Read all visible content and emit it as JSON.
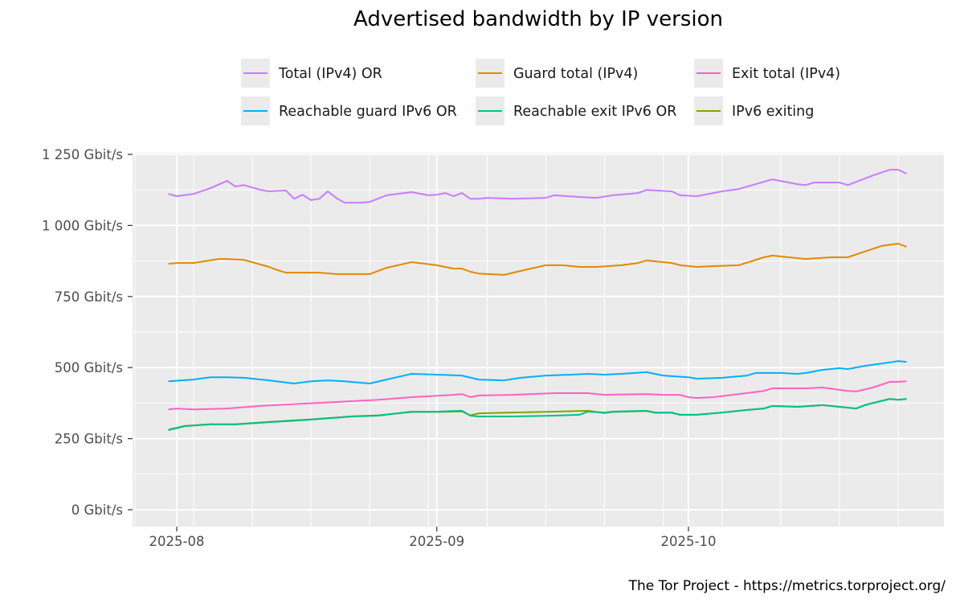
{
  "chart_data": {
    "type": "line",
    "title": "Advertised bandwidth by IP version",
    "xlabel": "",
    "ylabel": "",
    "caption": "The Tor Project - https://metrics.torproject.org/",
    "ylim": [
      0,
      1250
    ],
    "y_unit": "Gbit/s",
    "y_ticks": [
      "0 Gbit/s",
      "250 Gbit/s",
      "500 Gbit/s",
      "750 Gbit/s",
      "1 000 Gbit/s",
      "1 250 Gbit/s"
    ],
    "y_tick_values": [
      0,
      250,
      500,
      750,
      1000,
      1250
    ],
    "x_ticks": [
      "2025-08",
      "2025-09",
      "2025-10"
    ],
    "x_tick_dates": [
      "2025-08-01",
      "2025-09-01",
      "2025-10-01"
    ],
    "xlim": [
      "2025-07-26",
      "2025-11-02"
    ],
    "grid": true,
    "legend_position": "top",
    "series": [
      {
        "name": "Total (IPv4) OR",
        "color": "#C77CFF",
        "points": [
          [
            "2025-07-31",
            1111
          ],
          [
            "2025-08-01",
            1103
          ],
          [
            "2025-08-03",
            1111
          ],
          [
            "2025-08-05",
            1131
          ],
          [
            "2025-08-07",
            1157
          ],
          [
            "2025-08-08",
            1137
          ],
          [
            "2025-08-09",
            1142
          ],
          [
            "2025-08-11",
            1125
          ],
          [
            "2025-08-12",
            1120
          ],
          [
            "2025-08-14",
            1123
          ],
          [
            "2025-08-15",
            1094
          ],
          [
            "2025-08-16",
            1108
          ],
          [
            "2025-08-17",
            1089
          ],
          [
            "2025-08-18",
            1094
          ],
          [
            "2025-08-19",
            1120
          ],
          [
            "2025-08-20",
            1097
          ],
          [
            "2025-08-21",
            1080
          ],
          [
            "2025-08-23",
            1080
          ],
          [
            "2025-08-24",
            1083
          ],
          [
            "2025-08-26",
            1106
          ],
          [
            "2025-08-29",
            1117
          ],
          [
            "2025-08-31",
            1106
          ],
          [
            "2025-09-01",
            1108
          ],
          [
            "2025-09-02",
            1114
          ],
          [
            "2025-09-03",
            1103
          ],
          [
            "2025-09-04",
            1114
          ],
          [
            "2025-09-05",
            1094
          ],
          [
            "2025-09-06",
            1094
          ],
          [
            "2025-09-07",
            1097
          ],
          [
            "2025-09-10",
            1094
          ],
          [
            "2025-09-14",
            1097
          ],
          [
            "2025-09-15",
            1106
          ],
          [
            "2025-09-18",
            1100
          ],
          [
            "2025-09-20",
            1097
          ],
          [
            "2025-09-22",
            1106
          ],
          [
            "2025-09-25",
            1114
          ],
          [
            "2025-09-26",
            1125
          ],
          [
            "2025-09-29",
            1120
          ],
          [
            "2025-09-30",
            1106
          ],
          [
            "2025-10-02",
            1103
          ],
          [
            "2025-10-05",
            1120
          ],
          [
            "2025-10-07",
            1128
          ],
          [
            "2025-10-11",
            1162
          ],
          [
            "2025-10-14",
            1145
          ],
          [
            "2025-10-15",
            1142
          ],
          [
            "2025-10-16",
            1151
          ],
          [
            "2025-10-19",
            1151
          ],
          [
            "2025-10-20",
            1142
          ],
          [
            "2025-10-23",
            1176
          ],
          [
            "2025-10-25",
            1196
          ],
          [
            "2025-10-26",
            1196
          ],
          [
            "2025-10-27",
            1182
          ]
        ]
      },
      {
        "name": "Guard total (IPv4)",
        "color": "#E08B00",
        "points": [
          [
            "2025-07-31",
            865
          ],
          [
            "2025-08-01",
            868
          ],
          [
            "2025-08-03",
            868
          ],
          [
            "2025-08-06",
            882
          ],
          [
            "2025-08-07",
            882
          ],
          [
            "2025-08-09",
            879
          ],
          [
            "2025-08-12",
            854
          ],
          [
            "2025-08-13",
            843
          ],
          [
            "2025-08-14",
            834
          ],
          [
            "2025-08-18",
            834
          ],
          [
            "2025-08-20",
            829
          ],
          [
            "2025-08-22",
            829
          ],
          [
            "2025-08-24",
            829
          ],
          [
            "2025-08-26",
            851
          ],
          [
            "2025-08-29",
            871
          ],
          [
            "2025-09-01",
            860
          ],
          [
            "2025-09-03",
            848
          ],
          [
            "2025-09-04",
            848
          ],
          [
            "2025-09-05",
            837
          ],
          [
            "2025-09-06",
            831
          ],
          [
            "2025-09-09",
            826
          ],
          [
            "2025-09-11",
            840
          ],
          [
            "2025-09-14",
            860
          ],
          [
            "2025-09-16",
            860
          ],
          [
            "2025-09-18",
            854
          ],
          [
            "2025-09-20",
            854
          ],
          [
            "2025-09-23",
            860
          ],
          [
            "2025-09-25",
            868
          ],
          [
            "2025-09-26",
            877
          ],
          [
            "2025-09-29",
            868
          ],
          [
            "2025-09-30",
            860
          ],
          [
            "2025-10-02",
            854
          ],
          [
            "2025-10-04",
            857
          ],
          [
            "2025-10-07",
            860
          ],
          [
            "2025-10-10",
            888
          ],
          [
            "2025-10-11",
            894
          ],
          [
            "2025-10-15",
            882
          ],
          [
            "2025-10-18",
            888
          ],
          [
            "2025-10-20",
            888
          ],
          [
            "2025-10-22",
            908
          ],
          [
            "2025-10-24",
            928
          ],
          [
            "2025-10-26",
            936
          ],
          [
            "2025-10-27",
            925
          ]
        ]
      },
      {
        "name": "Exit total (IPv4)",
        "color": "#FF61C3",
        "points": [
          [
            "2025-07-31",
            353
          ],
          [
            "2025-08-01",
            356
          ],
          [
            "2025-08-03",
            353
          ],
          [
            "2025-08-07",
            356
          ],
          [
            "2025-08-11",
            365
          ],
          [
            "2025-08-16",
            373
          ],
          [
            "2025-08-20",
            379
          ],
          [
            "2025-08-25",
            387
          ],
          [
            "2025-08-29",
            396
          ],
          [
            "2025-09-03",
            404
          ],
          [
            "2025-09-04",
            407
          ],
          [
            "2025-09-05",
            396
          ],
          [
            "2025-09-06",
            402
          ],
          [
            "2025-09-10",
            404
          ],
          [
            "2025-09-15",
            410
          ],
          [
            "2025-09-19",
            410
          ],
          [
            "2025-09-21",
            404
          ],
          [
            "2025-09-26",
            407
          ],
          [
            "2025-09-28",
            404
          ],
          [
            "2025-09-30",
            404
          ],
          [
            "2025-10-01",
            396
          ],
          [
            "2025-10-02",
            393
          ],
          [
            "2025-10-04",
            396
          ],
          [
            "2025-10-07",
            407
          ],
          [
            "2025-10-10",
            418
          ],
          [
            "2025-10-11",
            427
          ],
          [
            "2025-10-15",
            427
          ],
          [
            "2025-10-17",
            430
          ],
          [
            "2025-10-20",
            418
          ],
          [
            "2025-10-21",
            416
          ],
          [
            "2025-10-23",
            430
          ],
          [
            "2025-10-25",
            450
          ],
          [
            "2025-10-26",
            450
          ],
          [
            "2025-10-27",
            452
          ]
        ]
      },
      {
        "name": "Reachable guard IPv6 OR",
        "color": "#00B0F6",
        "points": [
          [
            "2025-07-31",
            452
          ],
          [
            "2025-08-03",
            458
          ],
          [
            "2025-08-05",
            466
          ],
          [
            "2025-08-07",
            466
          ],
          [
            "2025-08-09",
            464
          ],
          [
            "2025-08-12",
            455
          ],
          [
            "2025-08-15",
            444
          ],
          [
            "2025-08-17",
            452
          ],
          [
            "2025-08-19",
            455
          ],
          [
            "2025-08-21",
            452
          ],
          [
            "2025-08-24",
            444
          ],
          [
            "2025-08-26",
            458
          ],
          [
            "2025-08-29",
            478
          ],
          [
            "2025-09-01",
            475
          ],
          [
            "2025-09-04",
            472
          ],
          [
            "2025-09-06",
            458
          ],
          [
            "2025-09-09",
            455
          ],
          [
            "2025-09-11",
            464
          ],
          [
            "2025-09-14",
            472
          ],
          [
            "2025-09-17",
            475
          ],
          [
            "2025-09-19",
            478
          ],
          [
            "2025-09-21",
            475
          ],
          [
            "2025-09-23",
            478
          ],
          [
            "2025-09-26",
            484
          ],
          [
            "2025-09-28",
            472
          ],
          [
            "2025-10-01",
            466
          ],
          [
            "2025-10-02",
            461
          ],
          [
            "2025-10-05",
            464
          ],
          [
            "2025-10-08",
            472
          ],
          [
            "2025-10-09",
            481
          ],
          [
            "2025-10-12",
            481
          ],
          [
            "2025-10-14",
            478
          ],
          [
            "2025-10-15",
            481
          ],
          [
            "2025-10-17",
            492
          ],
          [
            "2025-10-19",
            498
          ],
          [
            "2025-10-20",
            495
          ],
          [
            "2025-10-22",
            506
          ],
          [
            "2025-10-25",
            518
          ],
          [
            "2025-10-26",
            523
          ],
          [
            "2025-10-27",
            520
          ]
        ]
      },
      {
        "name": "Reachable exit IPv6 OR",
        "color": "#00C08B",
        "points": [
          [
            "2025-07-31",
            280
          ],
          [
            "2025-08-02",
            294
          ],
          [
            "2025-08-05",
            300
          ],
          [
            "2025-08-08",
            300
          ],
          [
            "2025-08-12",
            308
          ],
          [
            "2025-08-17",
            317
          ],
          [
            "2025-08-22",
            328
          ],
          [
            "2025-08-25",
            331
          ],
          [
            "2025-08-29",
            345
          ],
          [
            "2025-09-01",
            345
          ],
          [
            "2025-09-04",
            348
          ],
          [
            "2025-09-05",
            331
          ],
          [
            "2025-09-06",
            328
          ],
          [
            "2025-09-10",
            328
          ],
          [
            "2025-09-15",
            331
          ],
          [
            "2025-09-18",
            334
          ],
          [
            "2025-09-19",
            345
          ],
          [
            "2025-09-21",
            342
          ],
          [
            "2025-09-22",
            345
          ],
          [
            "2025-09-26",
            348
          ],
          [
            "2025-09-27",
            342
          ],
          [
            "2025-09-29",
            342
          ],
          [
            "2025-09-30",
            334
          ],
          [
            "2025-10-02",
            334
          ],
          [
            "2025-10-05",
            342
          ],
          [
            "2025-10-08",
            351
          ],
          [
            "2025-10-10",
            356
          ],
          [
            "2025-10-11",
            365
          ],
          [
            "2025-10-14",
            362
          ],
          [
            "2025-10-17",
            368
          ],
          [
            "2025-10-19",
            362
          ],
          [
            "2025-10-21",
            356
          ],
          [
            "2025-10-22",
            368
          ],
          [
            "2025-10-25",
            390
          ],
          [
            "2025-10-26",
            387
          ],
          [
            "2025-10-27",
            390
          ]
        ]
      },
      {
        "name": "IPv6 exiting",
        "color": "#7FA600",
        "points": [
          [
            "2025-07-31",
            282
          ],
          [
            "2025-08-02",
            295
          ],
          [
            "2025-08-05",
            301
          ],
          [
            "2025-08-08",
            301
          ],
          [
            "2025-08-12",
            309
          ],
          [
            "2025-08-17",
            318
          ],
          [
            "2025-08-22",
            329
          ],
          [
            "2025-08-25",
            332
          ],
          [
            "2025-08-29",
            344
          ],
          [
            "2025-09-01",
            344
          ],
          [
            "2025-09-04",
            346
          ],
          [
            "2025-09-05",
            332
          ],
          [
            "2025-09-06",
            339
          ],
          [
            "2025-09-10",
            342
          ],
          [
            "2025-09-15",
            345
          ],
          [
            "2025-09-19",
            348
          ],
          [
            "2025-09-21",
            340
          ],
          [
            "2025-09-22",
            344
          ],
          [
            "2025-09-26",
            347
          ],
          [
            "2025-09-27",
            341
          ],
          [
            "2025-09-29",
            341
          ],
          [
            "2025-09-30",
            334
          ],
          [
            "2025-10-02",
            334
          ],
          [
            "2025-10-05",
            342
          ],
          [
            "2025-10-08",
            351
          ],
          [
            "2025-10-10",
            356
          ],
          [
            "2025-10-11",
            365
          ],
          [
            "2025-10-14",
            362
          ],
          [
            "2025-10-17",
            368
          ],
          [
            "2025-10-19",
            362
          ],
          [
            "2025-10-21",
            356
          ],
          [
            "2025-10-22",
            368
          ],
          [
            "2025-10-25",
            390
          ],
          [
            "2025-10-26",
            387
          ],
          [
            "2025-10-27",
            390
          ]
        ]
      }
    ]
  }
}
